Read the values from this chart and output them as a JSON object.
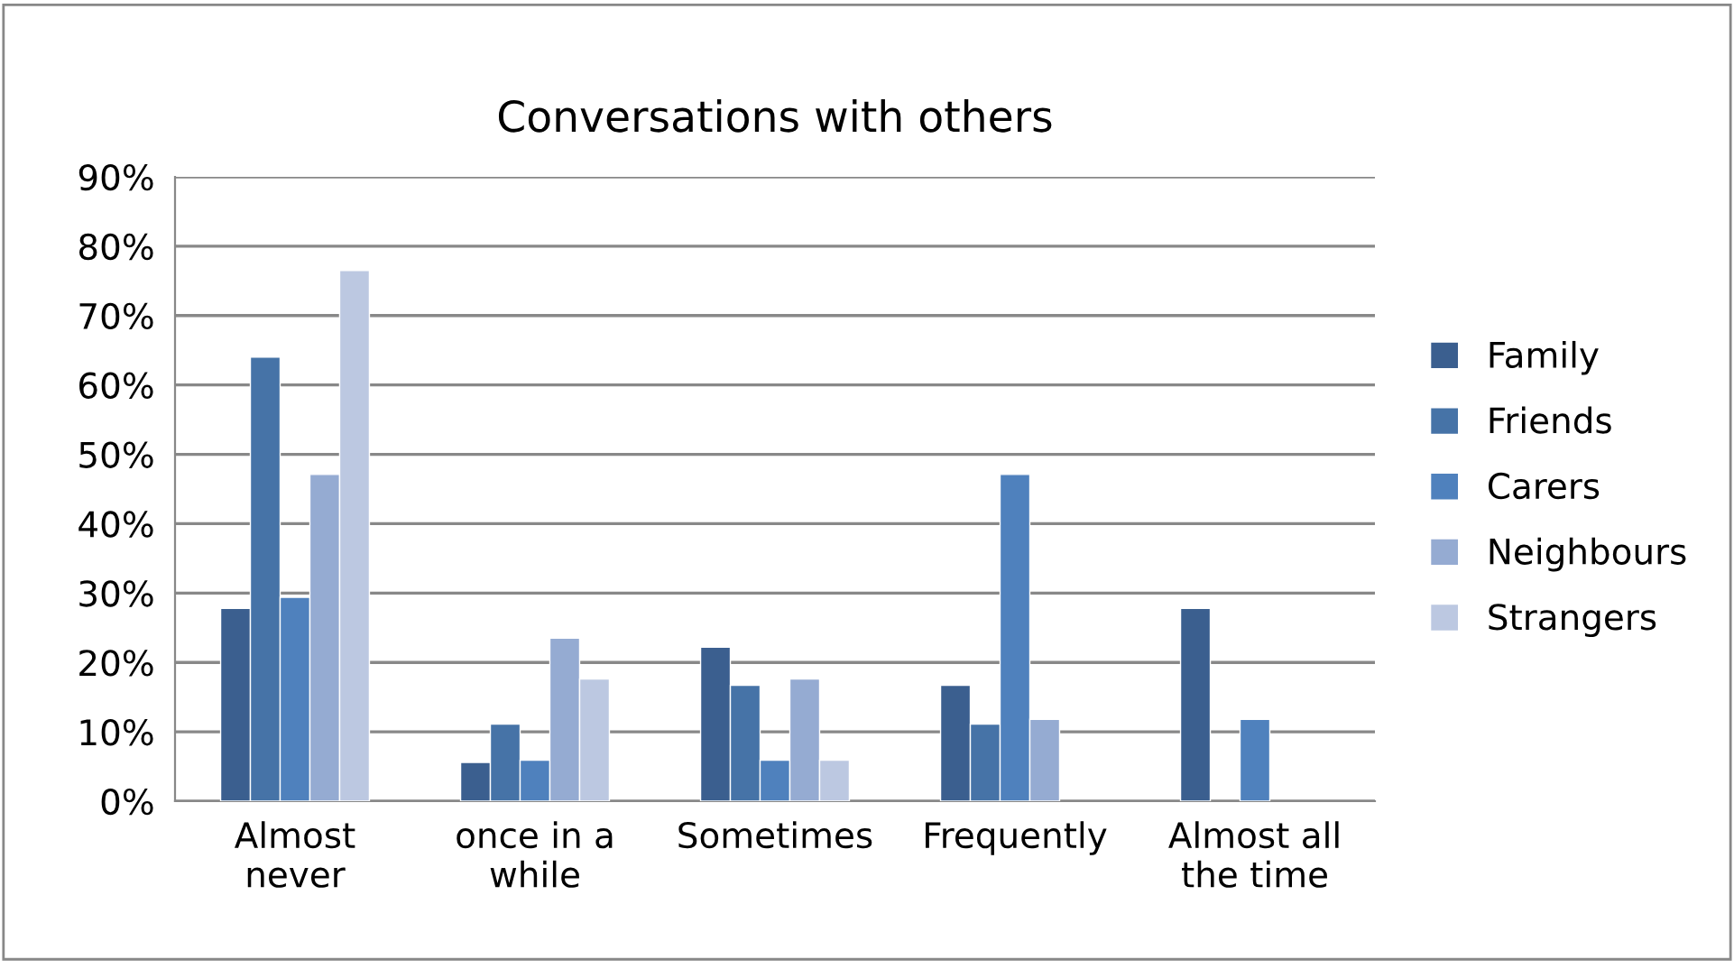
{
  "chart_data": {
    "type": "bar",
    "title": "Conversations with others",
    "categories": [
      "Almost\nnever",
      "once in a\nwhile",
      "Sometimes",
      "Frequently",
      "Almost all\nthe time"
    ],
    "series": [
      {
        "name": "Family",
        "color": "#3b5f8f",
        "values": [
          27.8,
          5.6,
          22.2,
          16.7,
          27.8
        ]
      },
      {
        "name": "Friends",
        "color": "#4673a7",
        "values": [
          64,
          11.1,
          16.7,
          11.1,
          null
        ]
      },
      {
        "name": "Carers",
        "color": "#4f81bd",
        "values": [
          29.4,
          5.9,
          5.9,
          47.1,
          11.8
        ]
      },
      {
        "name": "Neighbours",
        "color": "#95abd2",
        "values": [
          47.1,
          23.5,
          17.6,
          11.8,
          null
        ]
      },
      {
        "name": "Strangers",
        "color": "#bcc8e1",
        "values": [
          76.5,
          17.6,
          5.9,
          null,
          null
        ]
      }
    ],
    "ylim": [
      0,
      90
    ],
    "yticks": [
      {
        "value": 0,
        "label": "0%"
      },
      {
        "value": 10,
        "label": "10%"
      },
      {
        "value": 20,
        "label": "20%"
      },
      {
        "value": 30,
        "label": "30%"
      },
      {
        "value": 40,
        "label": "40%"
      },
      {
        "value": 50,
        "label": "50%"
      },
      {
        "value": 60,
        "label": "60%"
      },
      {
        "value": 70,
        "label": "70%"
      },
      {
        "value": 80,
        "label": "80%"
      },
      {
        "value": 90,
        "label": "90%"
      }
    ],
    "grid": "y",
    "legend": "right"
  }
}
